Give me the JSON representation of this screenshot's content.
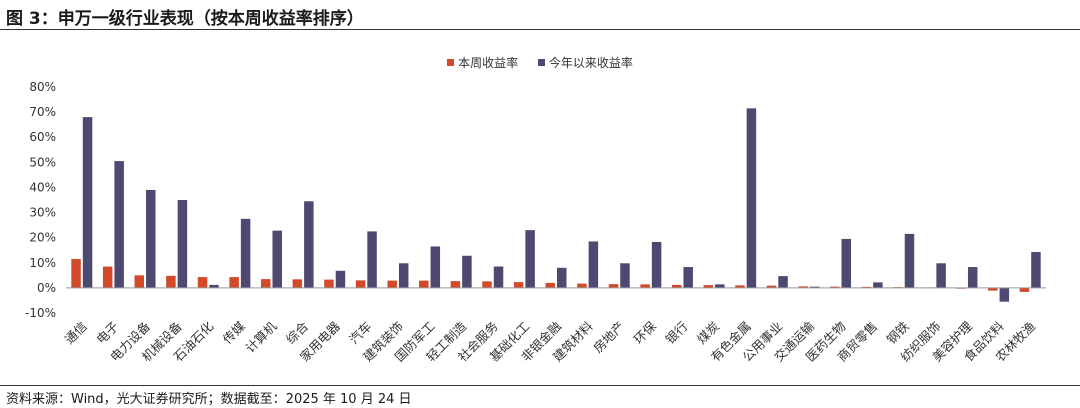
{
  "figure": {
    "title": "图 3：申万一级行业表现（按本周收益率排序）",
    "source": "资料来源：Wind，光大证券研究所；数据截至：2025 年 10 月 24 日"
  },
  "colors": {
    "weekly": "#d24a2a",
    "ytd": "#4d4a72",
    "axis": "#999999",
    "grid": "#e6e6e6"
  },
  "chart_data": {
    "type": "bar",
    "title": "",
    "xlabel": "",
    "ylabel": "",
    "ylim": [
      -10,
      80
    ],
    "yticks": [
      -10,
      0,
      10,
      20,
      30,
      40,
      50,
      60,
      70,
      80
    ],
    "ytick_labels": [
      "-10%",
      "0%",
      "10%",
      "20%",
      "30%",
      "40%",
      "50%",
      "60%",
      "70%",
      "80%"
    ],
    "grid": false,
    "legend": "top-center",
    "categories": [
      "通信",
      "电子",
      "电力设备",
      "机械设备",
      "石油石化",
      "传媒",
      "计算机",
      "综合",
      "家用电器",
      "汽车",
      "建筑装饰",
      "国防军工",
      "轻工制造",
      "社会服务",
      "基础化工",
      "非银金融",
      "建筑材料",
      "房地产",
      "环保",
      "银行",
      "煤炭",
      "有色金属",
      "公用事业",
      "交通运输",
      "医药生物",
      "商贸零售",
      "钢铁",
      "纺织服饰",
      "美容护理",
      "食品饮料",
      "农林牧渔"
    ],
    "series": [
      {
        "name": "本周收益率",
        "color": "#d24a2a",
        "values": [
          11.5,
          8.5,
          5.0,
          4.8,
          4.3,
          4.3,
          3.5,
          3.4,
          3.3,
          3.0,
          2.9,
          2.9,
          2.7,
          2.6,
          2.3,
          2.0,
          1.7,
          1.5,
          1.4,
          1.2,
          1.1,
          1.0,
          0.9,
          0.6,
          0.5,
          0.4,
          0.3,
          0.2,
          -0.3,
          -1.1,
          -1.6
        ]
      },
      {
        "name": "今年以来收益率",
        "color": "#4d4a72",
        "values": [
          68.0,
          50.5,
          39.0,
          35.0,
          1.2,
          27.5,
          22.8,
          34.5,
          6.8,
          22.5,
          9.8,
          16.5,
          12.8,
          8.5,
          23.0,
          8.0,
          18.5,
          9.8,
          18.3,
          8.3,
          1.4,
          71.5,
          4.7,
          0.5,
          19.5,
          2.2,
          21.5,
          9.8,
          8.3,
          -5.5,
          14.3
        ]
      }
    ]
  }
}
